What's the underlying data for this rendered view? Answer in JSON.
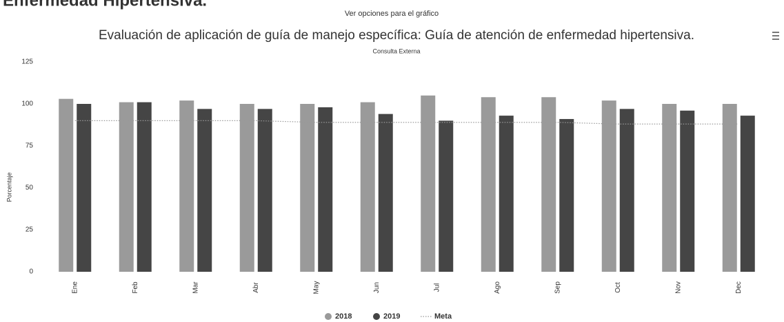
{
  "page_heading": "Enfermedad Hipertensiva.",
  "options_link": "Ver opciones para el gráfico",
  "chart_data": {
    "type": "bar",
    "title": "Evaluación de aplicación de guía de manejo específica: Guía de atención de enfermedad hipertensiva.",
    "subtitle": "Consulta Externa",
    "ylabel": "Porcentaje",
    "categories": [
      "Ene",
      "Feb",
      "Mar",
      "Abr",
      "May",
      "Jun",
      "Jul",
      "Ago",
      "Sep",
      "Oct",
      "Nov",
      "Dec"
    ],
    "series": [
      {
        "name": "2018",
        "color": "#9a9a9a",
        "values": [
          103,
          101,
          102,
          100,
          100,
          101,
          105,
          104,
          104,
          102,
          100,
          100
        ]
      },
      {
        "name": "2019",
        "color": "#454545",
        "values": [
          100,
          101,
          97,
          97,
          98,
          94,
          90,
          93,
          91,
          97,
          96,
          93
        ]
      },
      {
        "name": "Meta",
        "type": "line",
        "color": "#999999",
        "dash": "dotted",
        "values": [
          90,
          90,
          90,
          90,
          89,
          89,
          89,
          89,
          89,
          88,
          88,
          88
        ]
      }
    ],
    "ylim": [
      0,
      125
    ],
    "yticks": [
      0,
      25,
      50,
      75,
      100,
      125
    ],
    "grid": false,
    "legend": "bottom"
  }
}
